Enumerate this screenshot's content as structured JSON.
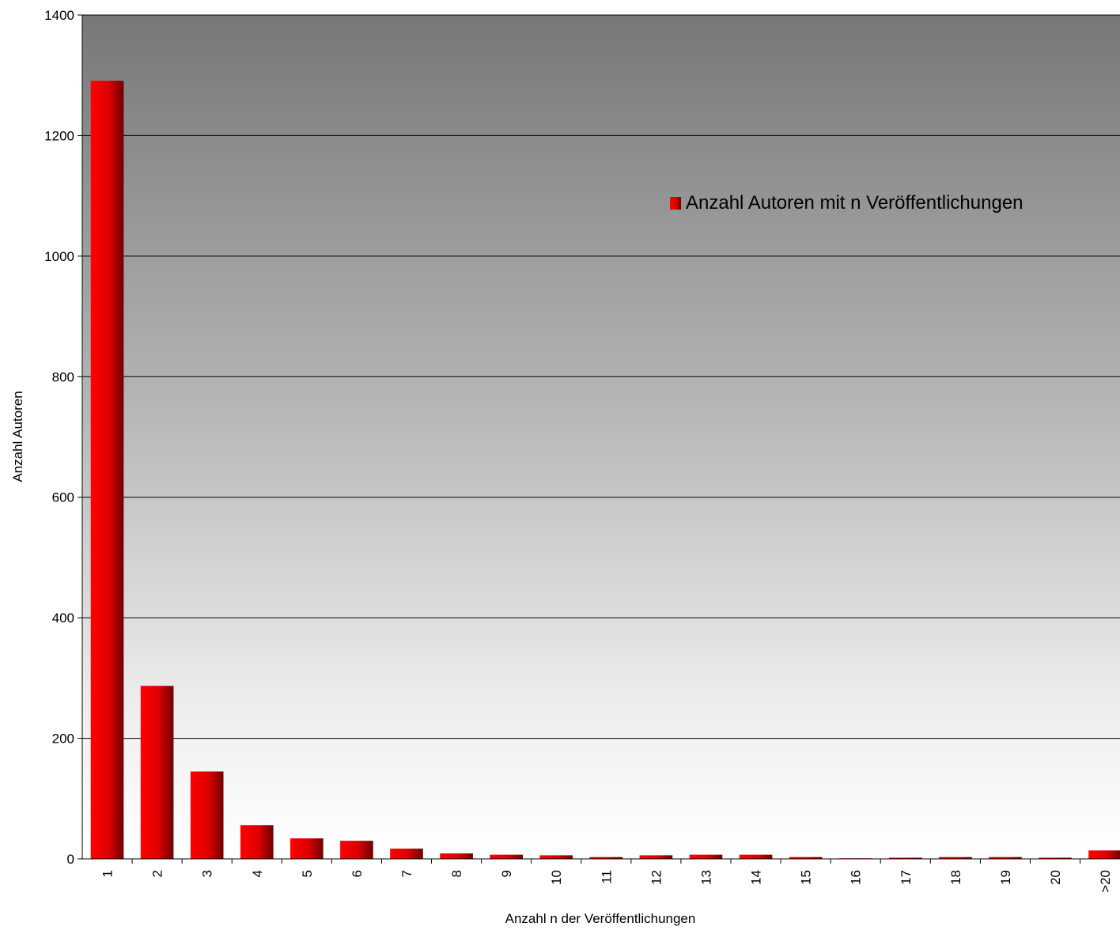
{
  "chart_data": {
    "type": "bar",
    "categories": [
      "1",
      "2",
      "3",
      "4",
      "5",
      "6",
      "7",
      "8",
      "9",
      "10",
      "11",
      "12",
      "13",
      "14",
      "15",
      "16",
      "17",
      "18",
      "19",
      "20",
      ">20"
    ],
    "series": [
      {
        "name": "Anzahl Autoren mit n Veröffentlichungen",
        "values": [
          1291,
          287,
          145,
          56,
          34,
          30,
          17,
          9,
          7,
          6,
          3,
          6,
          7,
          7,
          3,
          1,
          2,
          3,
          3,
          2,
          14
        ],
        "color": "#e00000"
      }
    ],
    "xlabel": "Anzahl n der Veröffentlichungen",
    "ylabel": "Anzahl Autoren",
    "ylim": [
      0,
      1400
    ],
    "yticks": [
      "0",
      "200",
      "400",
      "600",
      "800",
      "1000",
      "1200",
      "1400"
    ],
    "grid": true,
    "legend_position": "top-right"
  }
}
